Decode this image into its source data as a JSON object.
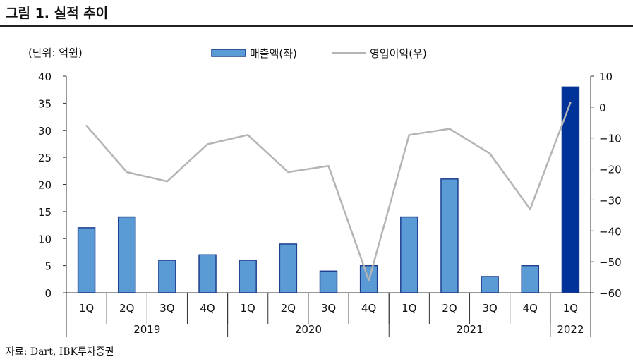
{
  "title": "그림 1. 실적 추이",
  "source": "자료: Dart, IBK투자증권",
  "colors": {
    "bar": "#5b9bd5",
    "bar_highlight": "#003399",
    "bar_stroke": "#1f3f8f",
    "line": "#b4b4b4"
  },
  "chart_data": {
    "type": "bar",
    "unit_label": "(단위: 억원)",
    "categories": [
      "1Q",
      "2Q",
      "3Q",
      "4Q",
      "1Q",
      "2Q",
      "3Q",
      "4Q",
      "1Q",
      "2Q",
      "3Q",
      "4Q",
      "1Q"
    ],
    "groups": [
      {
        "label": "2019",
        "count": 4
      },
      {
        "label": "2020",
        "count": 4
      },
      {
        "label": "2021",
        "count": 4
      },
      {
        "label": "2022",
        "count": 1
      }
    ],
    "series": [
      {
        "name": "매출액(좌)",
        "type": "bar",
        "axis": "left",
        "values": [
          12,
          14,
          6,
          7,
          6,
          9,
          4,
          5,
          14,
          21,
          3,
          5,
          38
        ],
        "highlight_index": 12
      },
      {
        "name": "영업이익(우)",
        "type": "line",
        "axis": "right",
        "values": [
          -6,
          -21,
          -24,
          -12,
          -9,
          -21,
          -19,
          -56,
          -9,
          -7,
          -15,
          -33,
          1.5
        ]
      }
    ],
    "y_left": {
      "min": 0,
      "max": 40,
      "ticks": [
        0,
        5,
        10,
        15,
        20,
        25,
        30,
        35,
        40
      ]
    },
    "y_right": {
      "min": -60,
      "max": 10,
      "ticks": [
        "10",
        "0",
        "−10",
        "−20",
        "−30",
        "−40",
        "−50",
        "−60"
      ],
      "tick_values": [
        10,
        0,
        -10,
        -20,
        -30,
        -40,
        -50,
        -60
      ]
    },
    "legend_position": "top"
  }
}
